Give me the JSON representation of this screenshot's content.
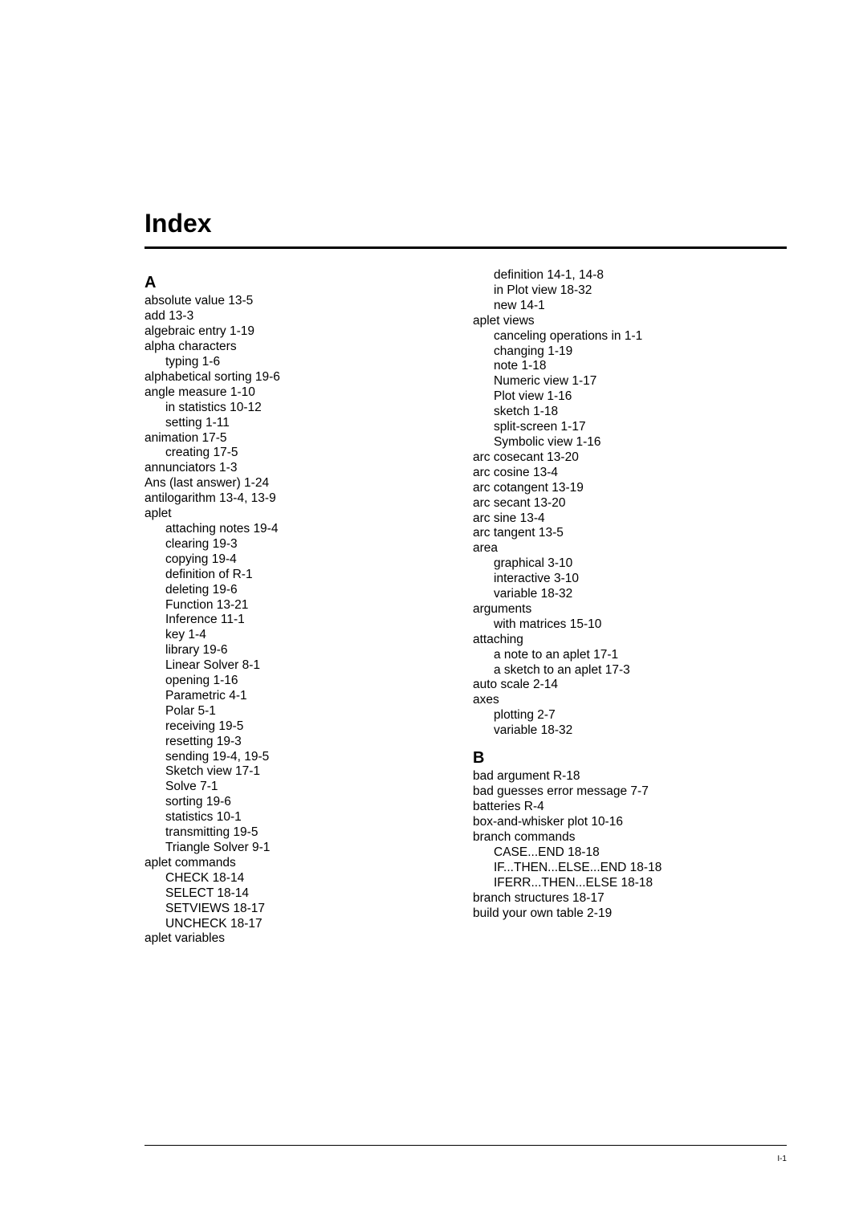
{
  "title": "Index",
  "footer": "I-1",
  "left": {
    "heading": "A",
    "items": [
      {
        "text": "absolute value 13-5",
        "level": 0
      },
      {
        "text": "add 13-3",
        "level": 0
      },
      {
        "text": "algebraic entry 1-19",
        "level": 0
      },
      {
        "text": "alpha characters",
        "level": 0
      },
      {
        "text": "typing 1-6",
        "level": 1
      },
      {
        "text": "alphabetical sorting 19-6",
        "level": 0
      },
      {
        "text": "angle measure 1-10",
        "level": 0
      },
      {
        "text": "in statistics 10-12",
        "level": 1
      },
      {
        "text": "setting 1-11",
        "level": 1
      },
      {
        "text": "animation 17-5",
        "level": 0
      },
      {
        "text": "creating 17-5",
        "level": 1
      },
      {
        "text": "annunciators 1-3",
        "level": 0
      },
      {
        "text": "Ans (last answer) 1-24",
        "level": 0
      },
      {
        "text": "antilogarithm 13-4, 13-9",
        "level": 0
      },
      {
        "text": "aplet",
        "level": 0
      },
      {
        "text": "attaching notes 19-4",
        "level": 1
      },
      {
        "text": "clearing 19-3",
        "level": 1
      },
      {
        "text": "copying 19-4",
        "level": 1
      },
      {
        "text": "definition of R-1",
        "level": 1
      },
      {
        "text": "deleting 19-6",
        "level": 1
      },
      {
        "text": "Function 13-21",
        "level": 1
      },
      {
        "text": "Inference 11-1",
        "level": 1
      },
      {
        "text": "key 1-4",
        "level": 1
      },
      {
        "text": "library 19-6",
        "level": 1
      },
      {
        "text": "Linear Solver 8-1",
        "level": 1
      },
      {
        "text": "opening 1-16",
        "level": 1
      },
      {
        "text": "Parametric 4-1",
        "level": 1
      },
      {
        "text": "Polar 5-1",
        "level": 1
      },
      {
        "text": "receiving 19-5",
        "level": 1
      },
      {
        "text": "resetting 19-3",
        "level": 1
      },
      {
        "text": "sending 19-4, 19-5",
        "level": 1
      },
      {
        "text": "Sketch view 17-1",
        "level": 1
      },
      {
        "text": "Solve 7-1",
        "level": 1
      },
      {
        "text": "sorting 19-6",
        "level": 1
      },
      {
        "text": "statistics 10-1",
        "level": 1
      },
      {
        "text": "transmitting 19-5",
        "level": 1
      },
      {
        "text": "Triangle Solver 9-1",
        "level": 1
      },
      {
        "text": "aplet commands",
        "level": 0
      },
      {
        "text": "CHECK 18-14",
        "level": 1
      },
      {
        "text": "SELECT 18-14",
        "level": 1
      },
      {
        "text": "SETVIEWS 18-17",
        "level": 1
      },
      {
        "text": "UNCHECK 18-17",
        "level": 1
      },
      {
        "text": "aplet variables",
        "level": 0
      }
    ]
  },
  "right": {
    "topItems": [
      {
        "text": "definition 14-1, 14-8",
        "level": 1
      },
      {
        "text": "in Plot view 18-32",
        "level": 1
      },
      {
        "text": "new 14-1",
        "level": 1
      },
      {
        "text": "aplet views",
        "level": 0
      },
      {
        "text": "canceling operations in 1-1",
        "level": 1
      },
      {
        "text": "changing 1-19",
        "level": 1
      },
      {
        "text": "note 1-18",
        "level": 1
      },
      {
        "text": "Numeric view 1-17",
        "level": 1
      },
      {
        "text": "Plot view 1-16",
        "level": 1
      },
      {
        "text": "sketch 1-18",
        "level": 1
      },
      {
        "text": "split-screen 1-17",
        "level": 1
      },
      {
        "text": "Symbolic view 1-16",
        "level": 1
      },
      {
        "text": "arc cosecant 13-20",
        "level": 0
      },
      {
        "text": "arc cosine 13-4",
        "level": 0
      },
      {
        "text": "arc cotangent 13-19",
        "level": 0
      },
      {
        "text": "arc secant 13-20",
        "level": 0
      },
      {
        "text": "arc sine 13-4",
        "level": 0
      },
      {
        "text": "arc tangent 13-5",
        "level": 0
      },
      {
        "text": "area",
        "level": 0
      },
      {
        "text": "graphical 3-10",
        "level": 1
      },
      {
        "text": "interactive 3-10",
        "level": 1
      },
      {
        "text": "variable 18-32",
        "level": 1
      },
      {
        "text": "arguments",
        "level": 0
      },
      {
        "text": "with matrices 15-10",
        "level": 1
      },
      {
        "text": "attaching",
        "level": 0
      },
      {
        "text": "a note to an aplet 17-1",
        "level": 1
      },
      {
        "text": "a sketch to an aplet 17-3",
        "level": 1
      },
      {
        "text": "auto scale 2-14",
        "level": 0
      },
      {
        "text": "axes",
        "level": 0
      },
      {
        "text": "plotting 2-7",
        "level": 1
      },
      {
        "text": "variable 18-32",
        "level": 1
      }
    ],
    "heading": "B",
    "bItems": [
      {
        "text": "bad argument R-18",
        "level": 0
      },
      {
        "text": "bad guesses error message 7-7",
        "level": 0
      },
      {
        "text": "batteries R-4",
        "level": 0
      },
      {
        "text": "box-and-whisker plot 10-16",
        "level": 0
      },
      {
        "text": "branch commands",
        "level": 0
      },
      {
        "text": "CASE...END 18-18",
        "level": 1
      },
      {
        "text": "IF...THEN...ELSE...END 18-18",
        "level": 1
      },
      {
        "text": "IFERR...THEN...ELSE 18-18",
        "level": 1
      },
      {
        "text": "branch structures 18-17",
        "level": 0
      },
      {
        "text": "build your own table 2-19",
        "level": 0
      }
    ]
  }
}
